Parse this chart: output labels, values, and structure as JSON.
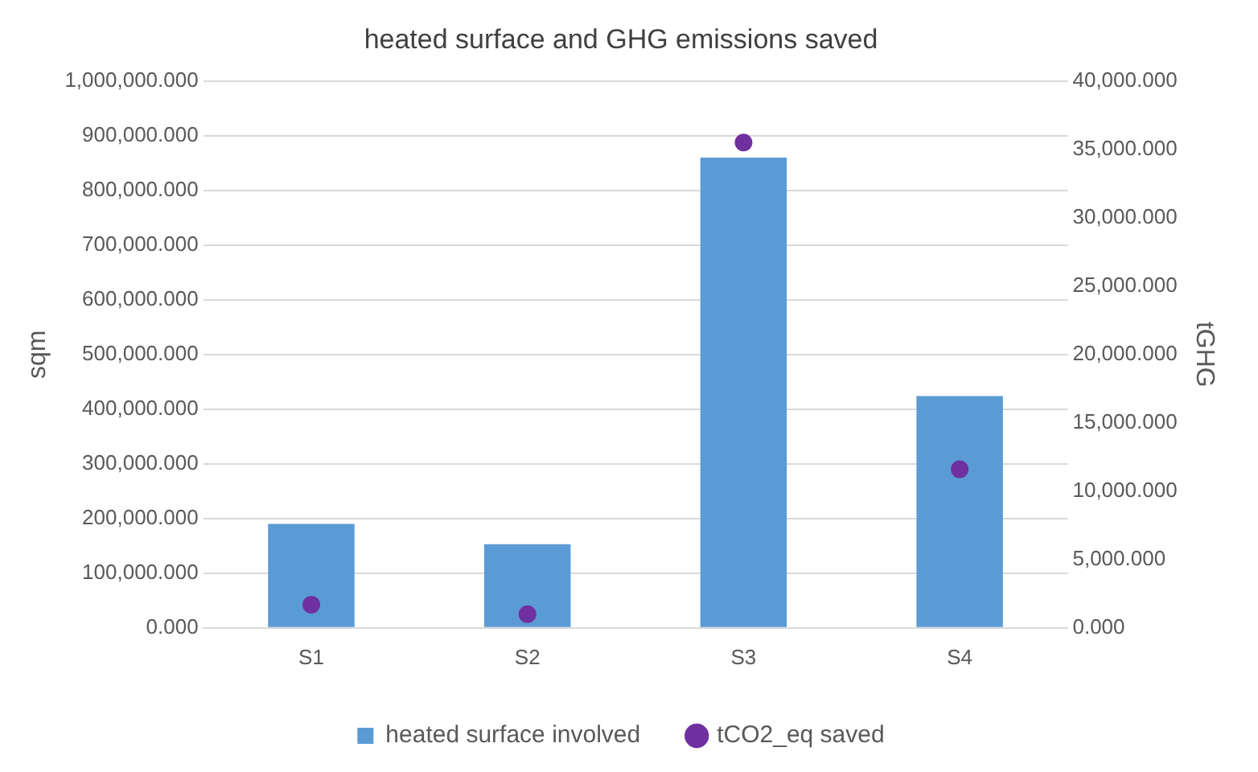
{
  "chart_data": {
    "type": "bar",
    "title": "heated surface and GHG emissions saved",
    "ylabel": "sqm",
    "y2label": "tGHG",
    "categories": [
      "S1",
      "S2",
      "S3",
      "S4"
    ],
    "series": [
      {
        "name": "heated surface involved",
        "color": "#5b9bd5",
        "values": [
          190000,
          153000,
          860000,
          424000
        ]
      },
      {
        "name": "tCO2_eq saved",
        "type": "scatter",
        "color": "#7030a0",
        "axis": "y2",
        "x": [
          "S1",
          "S2",
          "S3",
          "S4"
        ],
        "values": [
          1700,
          1000,
          35500,
          11600
        ]
      }
    ],
    "ylim": [
      0,
      1000000
    ],
    "yticks": [
      {
        "value": 0,
        "label": "0.000"
      },
      {
        "value": 100000,
        "label": "100,000.000"
      },
      {
        "value": 200000,
        "label": "200,000.000"
      },
      {
        "value": 300000,
        "label": "300,000.000"
      },
      {
        "value": 400000,
        "label": "400,000.000"
      },
      {
        "value": 500000,
        "label": "500,000.000"
      },
      {
        "value": 600000,
        "label": "600,000.000"
      },
      {
        "value": 700000,
        "label": "700,000.000"
      },
      {
        "value": 800000,
        "label": "800,000.000"
      },
      {
        "value": 900000,
        "label": "900,000.000"
      },
      {
        "value": 1000000,
        "label": "1,000,000.000"
      }
    ],
    "y2lim": [
      0,
      40000
    ],
    "y2ticks": [
      {
        "value": 0,
        "label": "0.000"
      },
      {
        "value": 5000,
        "label": "5,000.000"
      },
      {
        "value": 10000,
        "label": "10,000.000"
      },
      {
        "value": 15000,
        "label": "15,000.000"
      },
      {
        "value": 20000,
        "label": "20,000.000"
      },
      {
        "value": 25000,
        "label": "25,000.000"
      },
      {
        "value": 30000,
        "label": "30,000.000"
      },
      {
        "value": 35000,
        "label": "35,000.000"
      },
      {
        "value": 40000,
        "label": "40,000.000"
      }
    ],
    "grid": "y",
    "legend": "bottom",
    "marker": "circle"
  }
}
